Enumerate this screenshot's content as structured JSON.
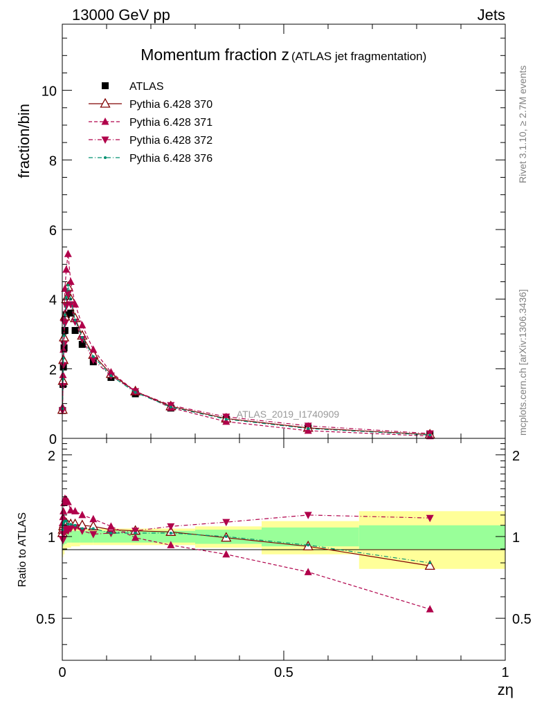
{
  "header": {
    "left": "13000 GeV pp",
    "right": "Jets"
  },
  "side_labels": {
    "rivet": "Rivet 3.1.10, ≥ 2.7M events",
    "source": "mcplots.cern.ch [arXiv:1306.3436]"
  },
  "chart_data": [
    {
      "type": "scatter",
      "title": "Momentum fraction z",
      "title_suffix": "(ATLAS jet fragmentation)",
      "ylabel": "fraction/bin",
      "watermark": "ATLAS_2019_I1740909",
      "xlim": [
        0,
        1
      ],
      "ylim": [
        0,
        11.9
      ],
      "y_ticks": [
        0,
        2,
        4,
        6,
        8,
        10
      ],
      "x": [
        0.0005,
        0.0015,
        0.0025,
        0.004,
        0.006,
        0.009,
        0.013,
        0.019,
        0.029,
        0.045,
        0.07,
        0.11,
        0.165,
        0.245,
        0.37,
        0.555,
        0.83
      ],
      "series": [
        {
          "name": "ATLAS",
          "marker": "filled-square",
          "color": "#000000",
          "values": [
            0.8,
            1.55,
            2.05,
            2.6,
            3.1,
            3.55,
            3.95,
            3.6,
            3.1,
            2.7,
            2.2,
            1.75,
            1.28,
            0.87,
            0.55,
            0.3,
            0.12
          ]
        },
        {
          "name": "Pythia 6.428 370",
          "marker": "open-triangle-up",
          "line": "solid",
          "color": "#800000",
          "values": [
            0.82,
            1.65,
            2.25,
            2.9,
            3.5,
            4.0,
            4.35,
            4.0,
            3.45,
            2.95,
            2.4,
            1.85,
            1.35,
            0.92,
            0.57,
            0.3,
            0.11
          ]
        },
        {
          "name": "Pythia 6.428 371",
          "marker": "filled-triangle-up",
          "line": "dashed",
          "color": "#b0004a",
          "values": [
            0.9,
            1.82,
            2.55,
            3.45,
            4.3,
            4.85,
            5.3,
            4.5,
            3.85,
            3.25,
            2.55,
            1.9,
            1.35,
            0.88,
            0.48,
            0.22,
            0.065
          ]
        },
        {
          "name": "Pythia 6.428 372",
          "marker": "filled-triangle-down",
          "line": "dash-dot",
          "color": "#b0004a",
          "values": [
            0.8,
            1.5,
            2.1,
            2.7,
            3.3,
            3.8,
            4.15,
            3.85,
            3.35,
            2.85,
            2.25,
            1.8,
            1.35,
            0.95,
            0.62,
            0.36,
            0.14
          ]
        },
        {
          "name": "Pythia 6.428 376",
          "marker": "dot",
          "line": "dash-dot",
          "color": "#009070",
          "values": [
            0.85,
            1.7,
            2.3,
            2.95,
            3.55,
            4.05,
            4.4,
            4.0,
            3.4,
            2.9,
            2.35,
            1.8,
            1.32,
            0.9,
            0.55,
            0.28,
            0.095
          ]
        }
      ]
    },
    {
      "type": "scatter",
      "ylabel": "Ratio to ATLAS",
      "xlabel": "zη",
      "xlim": [
        0,
        1
      ],
      "ylim": [
        0.35,
        2.3
      ],
      "y_ticks": [
        0.5,
        1,
        2
      ],
      "x_ticks": [
        0,
        0.5,
        1
      ],
      "reference": 1,
      "bands": {
        "inner_color": "#99ff99",
        "outer_color": "#ffff99",
        "edges": [
          0,
          0.002,
          0.005,
          0.01,
          0.02,
          0.04,
          0.07,
          0.1,
          0.15,
          0.2,
          0.3,
          0.45,
          0.67,
          1.0
        ],
        "inner": [
          0.08,
          0.07,
          0.06,
          0.05,
          0.05,
          0.05,
          0.05,
          0.05,
          0.05,
          0.05,
          0.06,
          0.08,
          0.1
        ],
        "outer": [
          0.16,
          0.14,
          0.11,
          0.09,
          0.08,
          0.07,
          0.07,
          0.07,
          0.07,
          0.07,
          0.09,
          0.14,
          0.24
        ]
      },
      "x": [
        0.0005,
        0.0015,
        0.0025,
        0.004,
        0.006,
        0.009,
        0.013,
        0.019,
        0.029,
        0.045,
        0.07,
        0.11,
        0.165,
        0.245,
        0.37,
        0.555,
        0.83
      ],
      "series": [
        {
          "name": "Pythia 6.428 370",
          "marker": "open-triangle-up",
          "line": "solid",
          "color": "#800000",
          "values": [
            1.03,
            1.06,
            1.09,
            1.11,
            1.13,
            1.12,
            1.1,
            1.11,
            1.11,
            1.1,
            1.09,
            1.06,
            1.05,
            1.04,
            0.99,
            0.92,
            0.78
          ]
        },
        {
          "name": "Pythia 6.428 371",
          "marker": "filled-triangle-up",
          "line": "dashed",
          "color": "#b0004a",
          "values": [
            1.12,
            1.18,
            1.24,
            1.33,
            1.38,
            1.37,
            1.34,
            1.25,
            1.24,
            1.2,
            1.16,
            1.09,
            0.99,
            0.93,
            0.86,
            0.74,
            0.54
          ]
        },
        {
          "name": "Pythia 6.428 372",
          "marker": "filled-triangle-down",
          "line": "dash-dot",
          "color": "#b0004a",
          "values": [
            0.98,
            0.97,
            1.02,
            1.04,
            1.06,
            1.07,
            1.05,
            1.07,
            1.08,
            1.05,
            1.02,
            1.03,
            1.05,
            1.09,
            1.13,
            1.2,
            1.17
          ]
        },
        {
          "name": "Pythia 6.428 376",
          "marker": "dot",
          "line": "dash-dot",
          "color": "#009070",
          "values": [
            1.06,
            1.1,
            1.12,
            1.13,
            1.14,
            1.14,
            1.11,
            1.11,
            1.1,
            1.07,
            1.07,
            1.03,
            1.03,
            1.03,
            1.0,
            0.93,
            0.8
          ]
        }
      ]
    }
  ]
}
